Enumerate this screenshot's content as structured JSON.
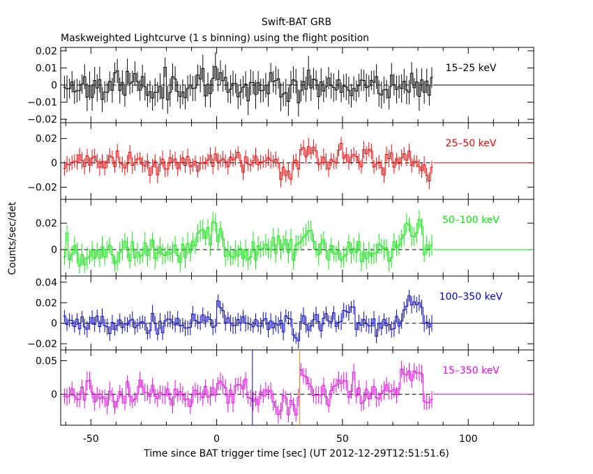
{
  "chart_data": {
    "type": "line",
    "title": "Swift-BAT GRB",
    "subtitle": "Maskweighted Lightcurve (1 s binning) using the flight position",
    "xlabel": "Time since BAT trigger time [sec] (UT 2012-12-29T12:51:51.6)",
    "ylabel": "Counts/sec/det",
    "xlim": [
      -62,
      126
    ],
    "xticks": [
      "-50",
      "0",
      "50",
      "100"
    ],
    "xtick_values": [
      -50,
      0,
      50,
      100
    ],
    "data_x_range": [
      -61,
      86
    ],
    "binning_s": 1,
    "grid": false,
    "vertical_markers": [
      {
        "x": 14.2,
        "color": "#0000ff"
      },
      {
        "x": 33.0,
        "color": "#ff8000"
      }
    ],
    "panels": [
      {
        "label": "15–25 keV",
        "color": "#000000",
        "ylim": [
          -0.022,
          0.022
        ],
        "yticks": [
          "0.02",
          "0.01",
          "0",
          "−0.01",
          "−0.02"
        ],
        "ytick_values": [
          0.02,
          0.01,
          0,
          -0.01,
          -0.02
        ],
        "noise": 0.0045,
        "err": 0.007,
        "dashed_zero": false,
        "seed": 11,
        "features": []
      },
      {
        "label": "25–50 keV",
        "color": "#ff0000",
        "ylim": [
          -0.03,
          0.033
        ],
        "yticks": [
          "0.02",
          "0",
          "−0.02"
        ],
        "ytick_values": [
          0.02,
          0,
          -0.02
        ],
        "noise": 0.004,
        "err": 0.006,
        "dashed_zero": true,
        "seed": 23,
        "features": [
          {
            "t0": 25,
            "t1": 30,
            "level": -0.012
          },
          {
            "t0": 33,
            "t1": 40,
            "level": 0.01
          },
          {
            "t0": 48,
            "t1": 55,
            "level": 0.011
          },
          {
            "t0": 58,
            "t1": 62,
            "level": 0.011
          },
          {
            "t0": 83,
            "t1": 86,
            "level": -0.012
          }
        ]
      },
      {
        "label": "50–100 keV",
        "color": "#00ee00",
        "ylim": [
          -0.02,
          0.038
        ],
        "yticks": [
          "0.02",
          "0"
        ],
        "ytick_values": [
          0.02,
          0
        ],
        "noise": 0.005,
        "err": 0.007,
        "dashed_zero": true,
        "seed": 37,
        "features": [
          {
            "t0": -55,
            "t1": -50,
            "level": -0.006
          },
          {
            "t0": -8,
            "t1": 2,
            "level": 0.012
          },
          {
            "t0": 33,
            "t1": 38,
            "level": 0.012
          },
          {
            "t0": 55,
            "t1": 62,
            "level": -0.004
          },
          {
            "t0": 73,
            "t1": 82,
            "level": 0.014
          }
        ]
      },
      {
        "label": "100–350 keV",
        "color": "#0000cc",
        "ylim": [
          -0.026,
          0.046
        ],
        "yticks": [
          "0.04",
          "0.02",
          "0",
          "−0.02"
        ],
        "ytick_values": [
          0.04,
          0.02,
          0,
          -0.02
        ],
        "noise": 0.005,
        "err": 0.007,
        "dashed_zero": false,
        "seed": 53,
        "features": [
          {
            "t0": 0,
            "t1": 3,
            "level": 0.012
          },
          {
            "t0": 30,
            "t1": 33,
            "level": -0.01
          },
          {
            "t0": 50,
            "t1": 55,
            "level": 0.012
          },
          {
            "t0": 74,
            "t1": 82,
            "level": 0.018
          }
        ]
      },
      {
        "label": "15–350 keV",
        "color": "#ee00ee",
        "ylim": [
          -0.046,
          0.066
        ],
        "yticks": [
          "0.05",
          "0"
        ],
        "ytick_values": [
          0.05,
          0
        ],
        "noise": 0.009,
        "err": 0.012,
        "dashed_zero": true,
        "seed": 71,
        "features": [
          {
            "t0": 0,
            "t1": 4,
            "level": 0.022
          },
          {
            "t0": 8,
            "t1": 12,
            "level": 0.016
          },
          {
            "t0": 22,
            "t1": 32,
            "level": -0.016
          },
          {
            "t0": 33,
            "t1": 38,
            "level": 0.024
          },
          {
            "t0": 48,
            "t1": 55,
            "level": 0.018
          },
          {
            "t0": 73,
            "t1": 82,
            "level": 0.028
          }
        ]
      }
    ]
  }
}
